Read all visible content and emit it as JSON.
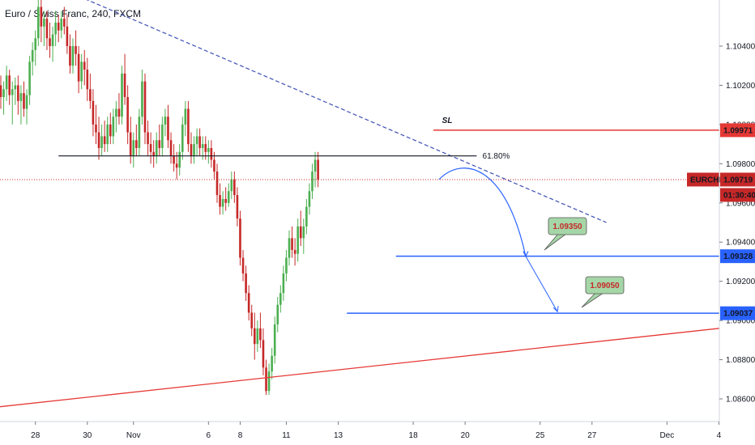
{
  "header": {
    "title": "Euro / Swiss Franc, 240, FXCM"
  },
  "chart_data": {
    "type": "candlestick",
    "title": "Euro / Swiss Franc, 240, FXCM",
    "symbol": "EURCHF",
    "last_price": "1.09719",
    "countdown": "01:30:40",
    "ylim": [
      1.085,
      1.107
    ],
    "y_ticks": [
      "1.10400",
      "1.10200",
      "1.10000",
      "1.09800",
      "1.09600",
      "1.09400",
      "1.09200",
      "1.09000",
      "1.08800",
      "1.08600"
    ],
    "x_ticks": [
      {
        "label": "28",
        "bar": 12
      },
      {
        "label": "30",
        "bar": 30
      },
      {
        "label": "Nov",
        "bar": 46
      },
      {
        "label": "6",
        "bar": 72
      },
      {
        "label": "8",
        "bar": 83
      },
      {
        "label": "11",
        "bar": 99
      },
      {
        "label": "13",
        "bar": 117
      },
      {
        "label": "18",
        "bar": 143
      },
      {
        "label": "20",
        "bar": 161
      },
      {
        "label": "25",
        "bar": 187
      },
      {
        "label": "27",
        "bar": 205
      },
      {
        "label": "Dec",
        "bar": 231
      },
      {
        "label": "4",
        "bar": 249
      }
    ],
    "candles": [
      [
        1.102,
        1.1025,
        1.1008,
        1.1014
      ],
      [
        1.1014,
        1.1022,
        1.1005,
        1.1018
      ],
      [
        1.1018,
        1.103,
        1.1012,
        1.1025
      ],
      [
        1.1025,
        1.1028,
        1.101,
        1.1015
      ],
      [
        1.1015,
        1.1022,
        1.1,
        1.1018
      ],
      [
        1.1018,
        1.1024,
        1.101,
        1.102
      ],
      [
        1.102,
        1.1025,
        1.1005,
        1.1012
      ],
      [
        1.1012,
        1.102,
        1.1,
        1.1016
      ],
      [
        1.1016,
        1.1022,
        1.1004,
        1.1008
      ],
      [
        1.1008,
        1.1018,
        1.1,
        1.1015
      ],
      [
        1.1015,
        1.1035,
        1.101,
        1.1032
      ],
      [
        1.1032,
        1.1042,
        1.1025,
        1.1038
      ],
      [
        1.1038,
        1.1048,
        1.103,
        1.1044
      ],
      [
        1.1044,
        1.1068,
        1.104,
        1.106
      ],
      [
        1.106,
        1.1064,
        1.1042,
        1.105
      ],
      [
        1.105,
        1.1058,
        1.104,
        1.1054
      ],
      [
        1.1054,
        1.1058,
        1.1038,
        1.1044
      ],
      [
        1.1044,
        1.1052,
        1.1034,
        1.104
      ],
      [
        1.104,
        1.105,
        1.1032,
        1.1046
      ],
      [
        1.1046,
        1.1058,
        1.104,
        1.1052
      ],
      [
        1.1052,
        1.1056,
        1.1042,
        1.1048
      ],
      [
        1.1048,
        1.1058,
        1.1044,
        1.1054
      ],
      [
        1.1054,
        1.106,
        1.1046,
        1.105
      ],
      [
        1.105,
        1.1056,
        1.1036,
        1.104
      ],
      [
        1.104,
        1.1046,
        1.1026,
        1.103
      ],
      [
        1.103,
        1.1044,
        1.1026,
        1.104
      ],
      [
        1.104,
        1.1048,
        1.103,
        1.1036
      ],
      [
        1.1036,
        1.104,
        1.1016,
        1.1022
      ],
      [
        1.1022,
        1.1036,
        1.1018,
        1.1032
      ],
      [
        1.1032,
        1.1038,
        1.102,
        1.1028
      ],
      [
        1.1028,
        1.1034,
        1.1012,
        1.1018
      ],
      [
        1.1018,
        1.1026,
        1.1008,
        1.1012
      ],
      [
        1.1012,
        1.1018,
        1.0994,
        1.1
      ],
      [
        1.1,
        1.101,
        1.099,
        1.0996
      ],
      [
        1.0996,
        1.1004,
        1.0982,
        1.0988
      ],
      [
        1.0988,
        1.1,
        1.0984,
        1.0994
      ],
      [
        1.0994,
        1.1002,
        1.0986,
        1.099
      ],
      [
        1.099,
        1.1004,
        1.0986,
        1.1
      ],
      [
        1.1,
        1.1006,
        1.099,
        1.0994
      ],
      [
        1.0994,
        1.1008,
        1.099,
        1.1004
      ],
      [
        1.1004,
        1.1012,
        1.0996,
        1.1008
      ],
      [
        1.1008,
        1.1016,
        1.1,
        1.1004
      ],
      [
        1.1004,
        1.103,
        1.1,
        1.1026
      ],
      [
        1.1026,
        1.1036,
        1.101,
        1.1014
      ],
      [
        1.1014,
        1.102,
        1.099,
        1.0996
      ],
      [
        1.0996,
        1.1004,
        1.098,
        1.0984
      ],
      [
        1.0984,
        1.0996,
        1.0978,
        1.0992
      ],
      [
        1.0992,
        1.1,
        1.0984,
        1.0988
      ],
      [
        1.0988,
        1.1008,
        1.0984,
        1.1004
      ],
      [
        1.1004,
        1.1028,
        1.1,
        1.1022
      ],
      [
        1.1022,
        1.1026,
        1.099,
        1.0996
      ],
      [
        1.0996,
        1.1002,
        1.0984,
        1.099
      ],
      [
        1.099,
        1.0996,
        1.098,
        1.0986
      ],
      [
        1.0986,
        1.0992,
        1.0978,
        1.0984
      ],
      [
        1.0984,
        1.0996,
        1.098,
        1.0992
      ],
      [
        1.0992,
        1.1,
        1.0984,
        1.0988
      ],
      [
        1.0988,
        1.1004,
        1.0984,
        1.1
      ],
      [
        1.1,
        1.1008,
        1.0994,
        1.1004
      ],
      [
        1.1004,
        1.101,
        1.0988,
        1.0992
      ],
      [
        1.0992,
        1.0996,
        1.098,
        1.0984
      ],
      [
        1.0984,
        1.099,
        1.0976,
        1.098
      ],
      [
        1.098,
        1.0986,
        1.0972,
        1.0978
      ],
      [
        1.0978,
        1.099,
        1.0974,
        1.0986
      ],
      [
        1.0986,
        1.1004,
        1.0982,
        1.1
      ],
      [
        1.1,
        1.1012,
        1.0994,
        1.1008
      ],
      [
        1.1008,
        1.1012,
        1.0986,
        1.099
      ],
      [
        1.099,
        1.0996,
        1.098,
        1.0984
      ],
      [
        1.0984,
        1.0994,
        1.098,
        1.099
      ],
      [
        1.099,
        1.0998,
        1.0984,
        1.0994
      ],
      [
        1.0994,
        1.0998,
        1.0984,
        1.0988
      ],
      [
        1.0988,
        1.0994,
        1.0982,
        1.099
      ],
      [
        1.099,
        1.0994,
        1.0982,
        1.0986
      ],
      [
        1.0986,
        1.0992,
        1.098,
        1.0988
      ],
      [
        1.0988,
        1.0992,
        1.0978,
        1.0982
      ],
      [
        1.0982,
        1.0986,
        1.0972,
        1.0976
      ],
      [
        1.0976,
        1.098,
        1.096,
        1.0964
      ],
      [
        1.0964,
        1.097,
        1.0954,
        1.0958
      ],
      [
        1.0958,
        1.0966,
        1.0954,
        1.0962
      ],
      [
        1.0962,
        1.0968,
        1.0956,
        1.096
      ],
      [
        1.096,
        1.097,
        1.0958,
        1.0966
      ],
      [
        1.0966,
        1.0976,
        1.0962,
        1.0972
      ],
      [
        1.0972,
        1.0976,
        1.096,
        1.0964
      ],
      [
        1.0964,
        1.0968,
        1.0948,
        1.0952
      ],
      [
        1.0952,
        1.0956,
        1.0928,
        1.0932
      ],
      [
        1.0932,
        1.0936,
        1.092,
        1.0924
      ],
      [
        1.0924,
        1.0928,
        1.091,
        1.0914
      ],
      [
        1.0914,
        1.0918,
        1.09,
        1.0904
      ],
      [
        1.0904,
        1.0908,
        1.0892,
        1.0896
      ],
      [
        1.0896,
        1.0904,
        1.088,
        1.0888
      ],
      [
        1.0888,
        1.09,
        1.0884,
        1.0896
      ],
      [
        1.0896,
        1.0904,
        1.0886,
        1.089
      ],
      [
        1.089,
        1.0896,
        1.0872,
        1.0876
      ],
      [
        1.0876,
        1.088,
        1.0862,
        1.0864
      ],
      [
        1.0864,
        1.0878,
        1.0862,
        1.0874
      ],
      [
        1.0874,
        1.0886,
        1.087,
        1.0882
      ],
      [
        1.0882,
        1.0902,
        1.0878,
        1.0898
      ],
      [
        1.0898,
        1.0912,
        1.0894,
        1.0908
      ],
      [
        1.0908,
        1.0918,
        1.0904,
        1.0914
      ],
      [
        1.0914,
        1.0928,
        1.091,
        1.0924
      ],
      [
        1.0924,
        1.0936,
        1.092,
        1.0932
      ],
      [
        1.0932,
        1.0946,
        1.0928,
        1.0942
      ],
      [
        1.0942,
        1.0948,
        1.0932,
        1.0936
      ],
      [
        1.0936,
        1.0942,
        1.0928,
        1.0934
      ],
      [
        1.0934,
        1.0952,
        1.093,
        1.0948
      ],
      [
        1.0948,
        1.0956,
        1.0938,
        1.0942
      ],
      [
        1.0942,
        1.0952,
        1.0934,
        1.0948
      ],
      [
        1.0948,
        1.0962,
        1.0944,
        1.0958
      ],
      [
        1.0958,
        1.097,
        1.0954,
        1.0966
      ],
      [
        1.0966,
        1.098,
        1.0962,
        1.0976
      ],
      [
        1.0976,
        1.0986,
        1.0968,
        1.0982
      ],
      [
        1.0982,
        1.0986,
        1.0968,
        1.0972
      ]
    ],
    "bar_spacing": 3.56,
    "annotations": {
      "fib_label": "61.80%",
      "sl_label": "SL",
      "sl_price": "1.09971",
      "sl_value": 1.09971,
      "tp1_label": "1.09350",
      "tp1_price": "1.09328",
      "tp1_value": 1.09328,
      "tp2_label": "1.09050",
      "tp2_price": "1.09037",
      "tp2_value": 1.09037,
      "fib_value": 1.0984
    },
    "colors": {
      "up": "#4caf50",
      "down": "#c62828",
      "sl": "#e53935",
      "target": "#2962ff",
      "trend_down": "#3f51b5",
      "trend_up": "#e53935",
      "label_bg": "#a5d6a7",
      "label_text": "#c62828",
      "symbol_bg": "#c62828"
    }
  }
}
